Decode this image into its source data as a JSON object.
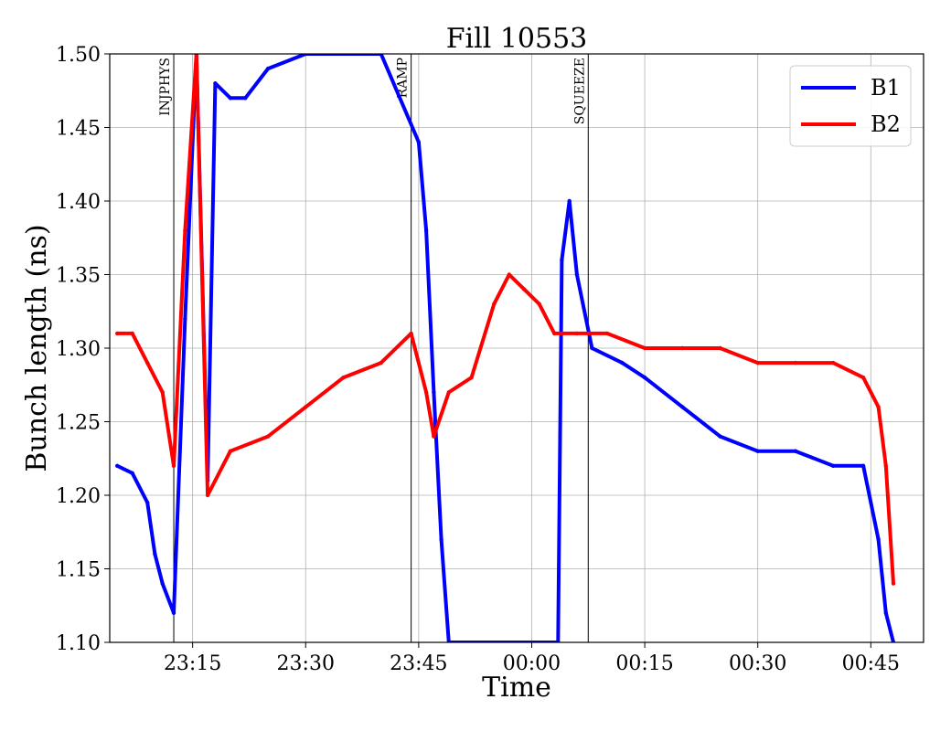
{
  "chart_data": {
    "type": "line",
    "title": "Fill 10553",
    "xlabel": "Time",
    "ylabel": "Bunch length (ns)",
    "ylim": [
      1.1,
      1.5
    ],
    "xlim": [
      "23:04",
      "00:52"
    ],
    "x_ticks": [
      "23:15",
      "23:30",
      "23:45",
      "00:00",
      "00:15",
      "00:30",
      "00:45"
    ],
    "y_ticks": [
      "1.10",
      "1.15",
      "1.20",
      "1.25",
      "1.30",
      "1.35",
      "1.40",
      "1.45",
      "1.50"
    ],
    "grid": true,
    "legend_position": "top-right",
    "events": [
      {
        "label": "INJPHYS",
        "time": "23:12.5"
      },
      {
        "label": "RAMP",
        "time": "23:44"
      },
      {
        "label": "SQUEEZE",
        "time": "00:07.5"
      }
    ],
    "series": [
      {
        "name": "B1",
        "color": "#0000ff",
        "points": [
          [
            "23:05",
            1.22
          ],
          [
            "23:07",
            1.215
          ],
          [
            "23:09",
            1.195
          ],
          [
            "23:10",
            1.16
          ],
          [
            "23:11",
            1.14
          ],
          [
            "23:12.5",
            1.12
          ],
          [
            "23:14",
            1.32
          ],
          [
            "23:15.5",
            1.5
          ],
          [
            "23:17",
            1.21
          ],
          [
            "23:18",
            1.48
          ],
          [
            "23:20",
            1.47
          ],
          [
            "23:22",
            1.47
          ],
          [
            "23:25",
            1.49
          ],
          [
            "23:30",
            1.5
          ],
          [
            "23:40",
            1.5
          ],
          [
            "23:45",
            1.44
          ],
          [
            "23:46",
            1.38
          ],
          [
            "23:47",
            1.27
          ],
          [
            "23:48",
            1.17
          ],
          [
            "23:49",
            1.1
          ],
          [
            "00:03.5",
            1.1
          ],
          [
            "00:04",
            1.36
          ],
          [
            "00:05",
            1.4
          ],
          [
            "00:06",
            1.35
          ],
          [
            "00:08",
            1.3
          ],
          [
            "00:12",
            1.29
          ],
          [
            "00:15",
            1.28
          ],
          [
            "00:20",
            1.26
          ],
          [
            "00:25",
            1.24
          ],
          [
            "00:30",
            1.23
          ],
          [
            "00:35",
            1.23
          ],
          [
            "00:40",
            1.22
          ],
          [
            "00:44",
            1.22
          ],
          [
            "00:46",
            1.17
          ],
          [
            "00:47",
            1.12
          ],
          [
            "00:48",
            1.1
          ]
        ]
      },
      {
        "name": "B2",
        "color": "#ff0000",
        "points": [
          [
            "23:05",
            1.31
          ],
          [
            "23:07",
            1.31
          ],
          [
            "23:09",
            1.29
          ],
          [
            "23:11",
            1.27
          ],
          [
            "23:12.5",
            1.22
          ],
          [
            "23:14",
            1.38
          ],
          [
            "23:15.5",
            1.5
          ],
          [
            "23:17",
            1.2
          ],
          [
            "23:20",
            1.23
          ],
          [
            "23:25",
            1.24
          ],
          [
            "23:30",
            1.26
          ],
          [
            "23:35",
            1.28
          ],
          [
            "23:40",
            1.29
          ],
          [
            "23:44",
            1.31
          ],
          [
            "23:46",
            1.27
          ],
          [
            "23:47",
            1.24
          ],
          [
            "23:49",
            1.27
          ],
          [
            "23:52",
            1.28
          ],
          [
            "23:55",
            1.33
          ],
          [
            "23:57",
            1.35
          ],
          [
            "23:59",
            1.34
          ],
          [
            "00:01",
            1.33
          ],
          [
            "00:03",
            1.31
          ],
          [
            "00:06",
            1.31
          ],
          [
            "00:10",
            1.31
          ],
          [
            "00:15",
            1.3
          ],
          [
            "00:20",
            1.3
          ],
          [
            "00:25",
            1.3
          ],
          [
            "00:30",
            1.29
          ],
          [
            "00:35",
            1.29
          ],
          [
            "00:40",
            1.29
          ],
          [
            "00:44",
            1.28
          ],
          [
            "00:46",
            1.26
          ],
          [
            "00:47",
            1.22
          ],
          [
            "00:48",
            1.14
          ]
        ]
      }
    ]
  }
}
